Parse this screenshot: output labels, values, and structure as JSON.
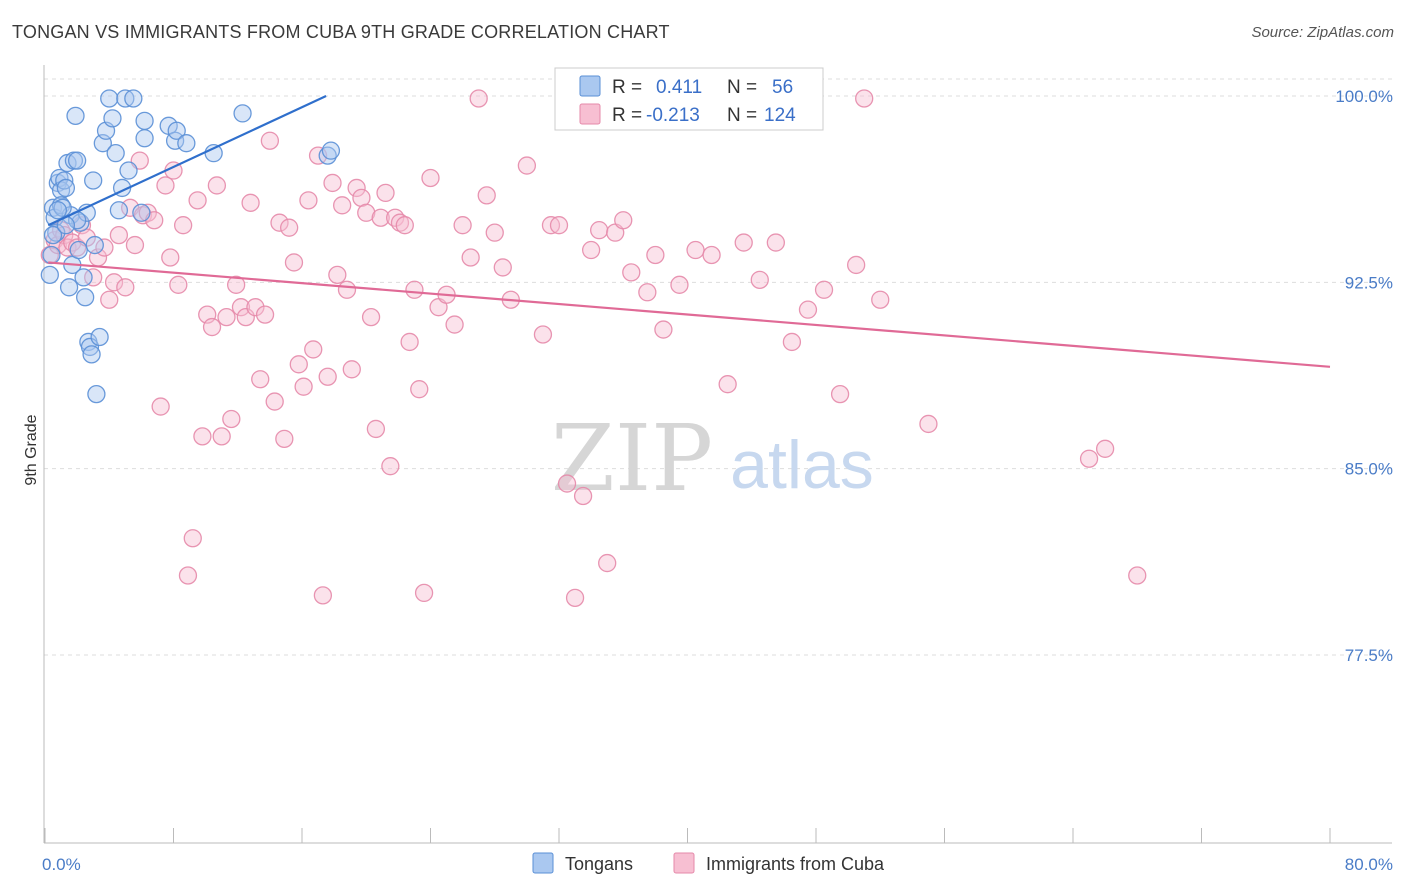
{
  "header": {
    "title": "TONGAN VS IMMIGRANTS FROM CUBA 9TH GRADE CORRELATION CHART",
    "source": "Source: ZipAtlas.com"
  },
  "watermark": {
    "zip": "ZIP",
    "atlas": "atlas"
  },
  "legend_top": {
    "rows": [
      {
        "r_label": "R =",
        "r_value": "0.411",
        "n_label": "N =",
        "n_value": "56"
      },
      {
        "r_label": "R =",
        "r_value": "-0.213",
        "n_label": "N =",
        "n_value": "124"
      }
    ]
  },
  "legend_bottom": [
    "Tongans",
    "Immigrants from Cuba"
  ],
  "colors": {
    "tongans_fill": "#aac8f0",
    "tongans_stroke": "#5a8fd6",
    "tongans_line": "#2f6fcc",
    "cuba_fill": "#f7bfd2",
    "cuba_stroke": "#e68aaa",
    "cuba_line": "#e06a96",
    "tick_text": "#4a7cc7",
    "grid": "#dddddd"
  },
  "chart_data": {
    "type": "scatter",
    "ylabel": "9th Grade",
    "xlim": [
      0,
      80
    ],
    "ylim": [
      70.2,
      101.0
    ],
    "x_tick_labels": [
      {
        "value": 0,
        "label": "0.0%"
      },
      {
        "value": 80,
        "label": "80.0%"
      }
    ],
    "y_ticks": [
      {
        "value": 100.0,
        "label": "100.0%"
      },
      {
        "value": 92.5,
        "label": "92.5%"
      },
      {
        "value": 85.0,
        "label": "85.0%"
      },
      {
        "value": 77.5,
        "label": "77.5%"
      }
    ],
    "grid": true,
    "series": [
      {
        "name": "Tongans",
        "R": 0.411,
        "N": 56,
        "trend": {
          "x": [
            0.2,
            17.5
          ],
          "y": [
            94.8,
            100.0
          ]
        },
        "points": [
          [
            0.3,
            92.8
          ],
          [
            0.4,
            93.6
          ],
          [
            0.5,
            95.5
          ],
          [
            0.6,
            95.1
          ],
          [
            0.7,
            94.5
          ],
          [
            0.8,
            96.5
          ],
          [
            0.9,
            96.7
          ],
          [
            1.0,
            96.2
          ],
          [
            1.0,
            95.6
          ],
          [
            1.2,
            96.6
          ],
          [
            1.3,
            96.3
          ],
          [
            1.4,
            97.3
          ],
          [
            1.5,
            92.3
          ],
          [
            1.6,
            95.2
          ],
          [
            1.7,
            93.2
          ],
          [
            1.8,
            97.4
          ],
          [
            1.9,
            99.2
          ],
          [
            2.0,
            97.4
          ],
          [
            2.1,
            93.8
          ],
          [
            2.2,
            94.9
          ],
          [
            2.4,
            92.7
          ],
          [
            2.5,
            91.9
          ],
          [
            2.6,
            95.3
          ],
          [
            2.7,
            90.1
          ],
          [
            2.8,
            89.9
          ],
          [
            2.9,
            89.6
          ],
          [
            3.0,
            96.6
          ],
          [
            3.2,
            88.0
          ],
          [
            3.4,
            90.3
          ],
          [
            3.6,
            98.1
          ],
          [
            3.8,
            98.6
          ],
          [
            4.0,
            99.9
          ],
          [
            4.2,
            99.1
          ],
          [
            4.4,
            97.7
          ],
          [
            4.6,
            95.4
          ],
          [
            4.8,
            96.3
          ],
          [
            5.0,
            99.9
          ],
          [
            5.2,
            97.0
          ],
          [
            5.5,
            99.9
          ],
          [
            6.0,
            95.3
          ],
          [
            6.2,
            98.3
          ],
          [
            6.2,
            99.0
          ],
          [
            7.7,
            98.8
          ],
          [
            8.1,
            98.2
          ],
          [
            8.2,
            98.6
          ],
          [
            8.8,
            98.1
          ],
          [
            10.5,
            97.7
          ],
          [
            12.3,
            99.3
          ],
          [
            17.6,
            97.6
          ],
          [
            17.8,
            97.8
          ],
          [
            0.5,
            94.4
          ],
          [
            1.1,
            95.5
          ],
          [
            2.0,
            95.0
          ],
          [
            3.1,
            94.0
          ],
          [
            1.3,
            94.8
          ],
          [
            0.8,
            95.4
          ]
        ]
      },
      {
        "name": "Immigrants from Cuba",
        "R": -0.213,
        "N": 124,
        "trend": {
          "x": [
            0.2,
            80.0
          ],
          "y": [
            93.3,
            89.1
          ]
        },
        "points": [
          [
            0.3,
            93.6
          ],
          [
            0.6,
            94.2
          ],
          [
            0.8,
            94.0
          ],
          [
            1.0,
            94.6
          ],
          [
            1.2,
            94.4
          ],
          [
            1.4,
            93.9
          ],
          [
            1.7,
            94.1
          ],
          [
            2.0,
            93.9
          ],
          [
            2.3,
            94.8
          ],
          [
            2.6,
            94.3
          ],
          [
            3.0,
            92.7
          ],
          [
            3.3,
            93.5
          ],
          [
            3.7,
            93.9
          ],
          [
            4.0,
            91.8
          ],
          [
            4.3,
            92.5
          ],
          [
            4.6,
            94.4
          ],
          [
            5.0,
            92.3
          ],
          [
            5.3,
            95.5
          ],
          [
            5.6,
            94.0
          ],
          [
            5.9,
            97.4
          ],
          [
            6.1,
            95.2
          ],
          [
            6.4,
            95.3
          ],
          [
            6.8,
            95.0
          ],
          [
            7.2,
            87.5
          ],
          [
            7.5,
            96.4
          ],
          [
            7.8,
            93.5
          ],
          [
            8.0,
            97.0
          ],
          [
            8.3,
            92.4
          ],
          [
            8.6,
            94.8
          ],
          [
            8.9,
            80.7
          ],
          [
            9.2,
            82.2
          ],
          [
            9.5,
            95.8
          ],
          [
            9.8,
            86.3
          ],
          [
            10.1,
            91.2
          ],
          [
            10.4,
            90.7
          ],
          [
            10.7,
            96.4
          ],
          [
            11.0,
            86.3
          ],
          [
            11.3,
            91.1
          ],
          [
            11.6,
            87.0
          ],
          [
            11.9,
            92.4
          ],
          [
            12.2,
            91.5
          ],
          [
            12.5,
            91.1
          ],
          [
            12.8,
            95.7
          ],
          [
            13.1,
            91.5
          ],
          [
            13.4,
            88.6
          ],
          [
            13.7,
            91.2
          ],
          [
            14.0,
            98.2
          ],
          [
            14.3,
            87.7
          ],
          [
            14.6,
            94.9
          ],
          [
            14.9,
            86.2
          ],
          [
            15.2,
            94.7
          ],
          [
            15.5,
            93.3
          ],
          [
            15.8,
            89.2
          ],
          [
            16.1,
            88.3
          ],
          [
            16.4,
            95.8
          ],
          [
            16.7,
            89.8
          ],
          [
            17.0,
            97.6
          ],
          [
            17.3,
            79.9
          ],
          [
            17.6,
            88.7
          ],
          [
            17.9,
            96.5
          ],
          [
            18.2,
            92.8
          ],
          [
            18.5,
            95.6
          ],
          [
            18.8,
            92.2
          ],
          [
            19.1,
            89.0
          ],
          [
            19.4,
            96.3
          ],
          [
            19.7,
            95.9
          ],
          [
            20.0,
            95.3
          ],
          [
            20.3,
            91.1
          ],
          [
            20.6,
            86.6
          ],
          [
            20.9,
            95.1
          ],
          [
            21.2,
            96.1
          ],
          [
            21.5,
            85.1
          ],
          [
            21.8,
            95.1
          ],
          [
            22.1,
            94.9
          ],
          [
            22.4,
            94.8
          ],
          [
            22.7,
            90.1
          ],
          [
            23.0,
            92.2
          ],
          [
            23.3,
            88.2
          ],
          [
            23.6,
            80.0
          ],
          [
            24.0,
            96.7
          ],
          [
            24.5,
            91.5
          ],
          [
            25.0,
            92.0
          ],
          [
            25.5,
            90.8
          ],
          [
            26.0,
            94.8
          ],
          [
            26.5,
            93.5
          ],
          [
            27.0,
            99.9
          ],
          [
            27.5,
            96.0
          ],
          [
            28.0,
            94.5
          ],
          [
            28.5,
            93.1
          ],
          [
            29.0,
            91.8
          ],
          [
            30.0,
            97.2
          ],
          [
            31.0,
            90.4
          ],
          [
            31.5,
            94.8
          ],
          [
            32.0,
            94.8
          ],
          [
            32.5,
            84.4
          ],
          [
            33.0,
            79.8
          ],
          [
            33.5,
            83.9
          ],
          [
            34.0,
            93.8
          ],
          [
            34.5,
            94.6
          ],
          [
            35.0,
            81.2
          ],
          [
            35.5,
            94.5
          ],
          [
            36.0,
            95.0
          ],
          [
            36.5,
            92.9
          ],
          [
            37.5,
            92.1
          ],
          [
            38.0,
            93.6
          ],
          [
            38.5,
            90.6
          ],
          [
            39.5,
            92.4
          ],
          [
            40.5,
            93.8
          ],
          [
            41.5,
            93.6
          ],
          [
            42.5,
            88.4
          ],
          [
            43.5,
            94.1
          ],
          [
            44.5,
            92.6
          ],
          [
            45.5,
            94.1
          ],
          [
            46.5,
            90.1
          ],
          [
            47.5,
            91.4
          ],
          [
            48.5,
            92.2
          ],
          [
            49.5,
            88.0
          ],
          [
            50.5,
            93.2
          ],
          [
            51.0,
            99.9
          ],
          [
            52.0,
            91.8
          ],
          [
            55.0,
            86.8
          ],
          [
            65.0,
            85.4
          ],
          [
            66.0,
            85.8
          ],
          [
            68.0,
            80.7
          ]
        ]
      }
    ]
  }
}
